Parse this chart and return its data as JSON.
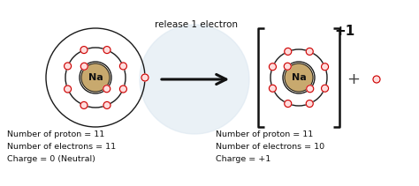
{
  "bg_color": "#ffffff",
  "atom_color": "#c8a96e",
  "orbit_color": "#1a1a1a",
  "electron_color": "#cc0000",
  "electron_face": "#ffdddd",
  "text_color": "#111111",
  "arrow_color": "#111111",
  "bracket_color": "#111111",
  "plus_color": "#444444",
  "charge_color": "#111111",
  "watermark_color": "#dae6f0",
  "label_top": "release 1 electron",
  "charge_label": "+1",
  "plus_sign": "+",
  "left_label1": "Number of proton = 11",
  "left_label2": "Number of electrons = 11",
  "left_label3": "Charge = 0 (Neutral)",
  "right_label1": "Number of proton = 11",
  "right_label2": "Number of electrons = 10",
  "right_label3": "Charge = +1",
  "na_label": "Na",
  "figsize": [
    4.74,
    2.11
  ],
  "dpi": 100
}
